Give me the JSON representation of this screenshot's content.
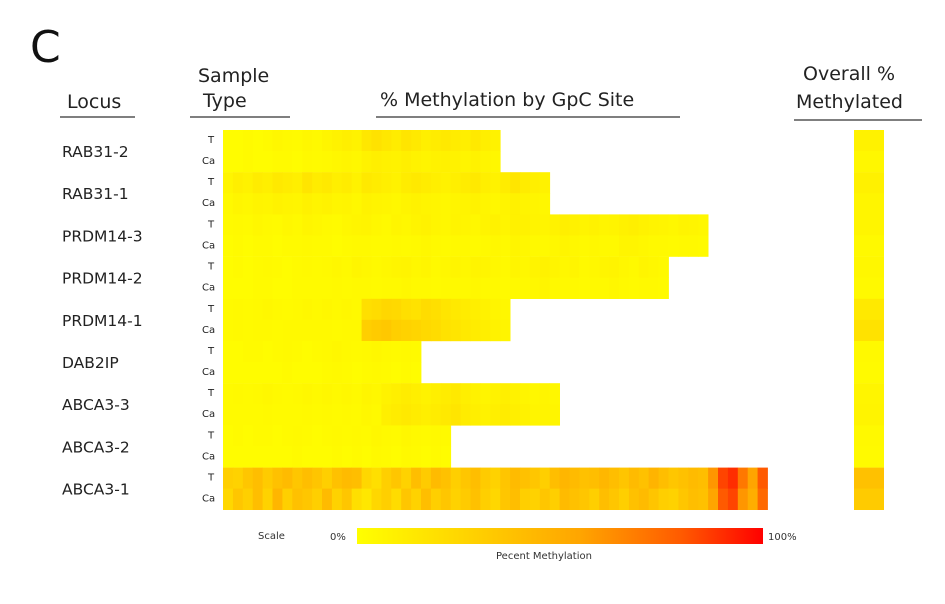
{
  "panel_label": "C",
  "headers": {
    "locus": "Locus",
    "sample_type_line1": "Sample",
    "sample_type_line2": "Type",
    "methylation_by_site": "% Methylation by GpC Site",
    "overall_line1": "Overall  %",
    "overall_line2": "Methylated"
  },
  "scale": {
    "label": "Scale",
    "min_label": "0%",
    "max_label": "100%",
    "title": "Pecent Methylation",
    "colors": [
      "#ffff00",
      "#ffd700",
      "#ffa500",
      "#ff5a00",
      "#ff0000"
    ]
  },
  "chart_data": {
    "type": "heatmap",
    "title": "% Methylation by GpC Site",
    "value_range": [
      0,
      100
    ],
    "sample_types": [
      "T",
      "Ca"
    ],
    "loci": [
      {
        "name": "RAB31-2",
        "sites": 28,
        "T": [
          2,
          2,
          3,
          2,
          3,
          5,
          4,
          3,
          5,
          4,
          6,
          8,
          10,
          8,
          15,
          18,
          15,
          12,
          16,
          14,
          10,
          12,
          14,
          12,
          10,
          14,
          10,
          8
        ],
        "Ca": [
          2,
          2,
          3,
          2,
          2,
          3,
          3,
          2,
          4,
          3,
          4,
          5,
          6,
          5,
          8,
          10,
          9,
          8,
          10,
          8,
          7,
          8,
          9,
          8,
          6,
          8,
          6,
          5
        ],
        "overall": [
          8,
          5
        ]
      },
      {
        "name": "RAB31-1",
        "sites": 33,
        "T": [
          6,
          10,
          8,
          12,
          10,
          14,
          12,
          10,
          16,
          12,
          14,
          10,
          12,
          8,
          14,
          12,
          10,
          8,
          12,
          14,
          12,
          10,
          8,
          10,
          12,
          14,
          10,
          8,
          12,
          16,
          12,
          10,
          8
        ],
        "Ca": [
          4,
          6,
          5,
          7,
          6,
          8,
          7,
          6,
          9,
          7,
          8,
          6,
          7,
          5,
          8,
          7,
          6,
          5,
          7,
          8,
          7,
          6,
          5,
          6,
          7,
          8,
          6,
          5,
          7,
          9,
          7,
          6,
          5
        ],
        "overall": [
          9,
          6
        ]
      },
      {
        "name": "PRDM14-3",
        "sites": 49,
        "T": [
          3,
          4,
          3,
          5,
          4,
          3,
          5,
          4,
          6,
          5,
          4,
          3,
          5,
          6,
          7,
          5,
          4,
          6,
          5,
          7,
          8,
          6,
          5,
          7,
          6,
          5,
          7,
          8,
          6,
          9,
          8,
          7,
          6,
          8,
          10,
          9,
          7,
          8,
          6,
          7,
          9,
          10,
          8,
          7,
          6,
          5,
          7,
          6,
          5
        ],
        "Ca": [
          2,
          3,
          2,
          3,
          3,
          2,
          3,
          3,
          4,
          3,
          3,
          2,
          3,
          4,
          4,
          3,
          3,
          4,
          3,
          4,
          5,
          4,
          3,
          4,
          4,
          3,
          4,
          5,
          4,
          6,
          5,
          4,
          4,
          5,
          6,
          5,
          4,
          5,
          4,
          4,
          6,
          6,
          5,
          4,
          4,
          3,
          4,
          4,
          3
        ],
        "overall": [
          6,
          4
        ]
      },
      {
        "name": "PRDM14-2",
        "sites": 45,
        "T": [
          2,
          3,
          2,
          3,
          4,
          3,
          2,
          3,
          4,
          3,
          4,
          5,
          4,
          6,
          5,
          4,
          5,
          6,
          7,
          5,
          6,
          4,
          5,
          6,
          5,
          7,
          6,
          5,
          4,
          6,
          5,
          7,
          8,
          6,
          5,
          6,
          4,
          5,
          6,
          7,
          5,
          4,
          6,
          5,
          4
        ],
        "Ca": [
          2,
          2,
          2,
          3,
          3,
          2,
          2,
          3,
          3,
          3,
          3,
          4,
          3,
          4,
          4,
          3,
          4,
          4,
          5,
          4,
          4,
          3,
          4,
          4,
          4,
          5,
          4,
          4,
          3,
          4,
          4,
          5,
          6,
          4,
          4,
          4,
          3,
          4,
          4,
          5,
          4,
          3,
          4,
          4,
          3
        ],
        "overall": [
          5,
          4
        ]
      },
      {
        "name": "PRDM14-1",
        "sites": 29,
        "T": [
          3,
          4,
          3,
          4,
          5,
          4,
          3,
          4,
          5,
          4,
          5,
          4,
          5,
          4,
          20,
          22,
          25,
          24,
          20,
          18,
          22,
          20,
          16,
          14,
          12,
          10,
          8,
          6,
          5
        ],
        "Ca": [
          3,
          4,
          3,
          4,
          4,
          3,
          4,
          4,
          4,
          4,
          4,
          3,
          4,
          4,
          30,
          32,
          34,
          30,
          28,
          26,
          24,
          22,
          18,
          16,
          14,
          12,
          10,
          8,
          6
        ],
        "overall": [
          14,
          18
        ]
      },
      {
        "name": "DAB2IP",
        "sites": 20,
        "T": [
          2,
          2,
          3,
          3,
          2,
          3,
          4,
          3,
          2,
          3,
          4,
          5,
          4,
          3,
          4,
          5,
          4,
          3,
          4,
          3
        ],
        "Ca": [
          2,
          2,
          2,
          2,
          2,
          2,
          3,
          2,
          2,
          2,
          3,
          4,
          3,
          2,
          3,
          4,
          3,
          2,
          3,
          2
        ],
        "overall": [
          4,
          3
        ]
      },
      {
        "name": "ABCA3-3",
        "sites": 34,
        "T": [
          3,
          4,
          3,
          4,
          5,
          4,
          3,
          4,
          5,
          4,
          5,
          4,
          5,
          4,
          6,
          5,
          8,
          10,
          12,
          10,
          8,
          10,
          12,
          14,
          10,
          8,
          6,
          8,
          10,
          8,
          6,
          5,
          6,
          5
        ],
        "Ca": [
          3,
          3,
          3,
          3,
          4,
          3,
          3,
          3,
          4,
          3,
          4,
          3,
          4,
          3,
          5,
          4,
          10,
          12,
          14,
          12,
          10,
          12,
          14,
          16,
          12,
          10,
          8,
          10,
          12,
          10,
          8,
          6,
          7,
          6
        ],
        "overall": [
          6,
          7
        ]
      },
      {
        "name": "ABCA3-2",
        "sites": 23,
        "T": [
          2,
          3,
          2,
          3,
          3,
          2,
          3,
          4,
          3,
          2,
          3,
          4,
          3,
          4,
          3,
          5,
          4,
          3,
          5,
          4,
          3,
          4,
          3
        ],
        "Ca": [
          2,
          2,
          2,
          2,
          2,
          2,
          2,
          3,
          2,
          2,
          2,
          3,
          2,
          3,
          2,
          4,
          3,
          2,
          4,
          3,
          2,
          3,
          2
        ],
        "overall": [
          4,
          3
        ]
      },
      {
        "name": "ABCA3-1",
        "sites": 55,
        "T": [
          30,
          28,
          35,
          40,
          32,
          38,
          42,
          35,
          40,
          36,
          30,
          38,
          42,
          40,
          25,
          20,
          30,
          35,
          28,
          40,
          32,
          42,
          38,
          30,
          35,
          40,
          32,
          28,
          36,
          42,
          38,
          35,
          30,
          40,
          45,
          42,
          38,
          40,
          44,
          40,
          36,
          42,
          38,
          46,
          40,
          35,
          38,
          42,
          40,
          60,
          85,
          90,
          70,
          55,
          80
        ],
        "Ca": [
          25,
          35,
          30,
          40,
          28,
          45,
          30,
          38,
          35,
          30,
          42,
          28,
          35,
          20,
          15,
          25,
          30,
          22,
          35,
          28,
          40,
          30,
          35,
          28,
          32,
          38,
          30,
          25,
          35,
          40,
          30,
          28,
          35,
          30,
          42,
          38,
          35,
          30,
          40,
          35,
          30,
          38,
          42,
          36,
          30,
          28,
          35,
          40,
          38,
          55,
          80,
          85,
          60,
          50,
          75
        ],
        "overall": [
          38,
          32
        ]
      }
    ]
  }
}
